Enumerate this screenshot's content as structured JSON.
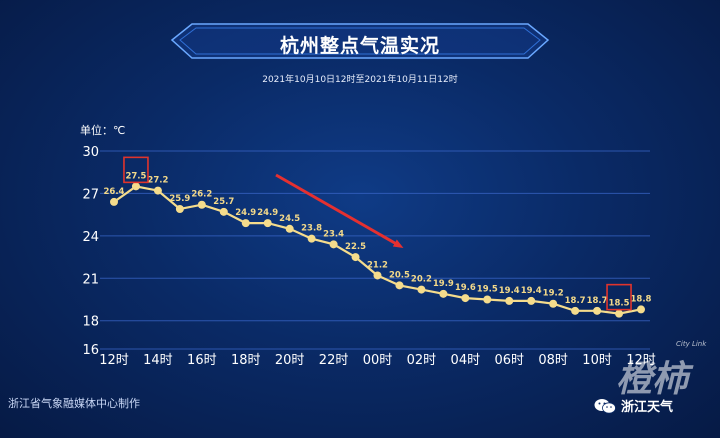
{
  "header": {
    "title": "杭州整点气温实况",
    "subtitle": "2021年10月10日12时至2021年10月11日12时"
  },
  "footer": {
    "credit": "浙江省气象融媒体中心制作",
    "brand": "浙江天气",
    "watermark": "橙柿",
    "watermark_small": "City Link",
    "brand_icon": "wechat-icon"
  },
  "colors": {
    "line": "#f5dc8c",
    "label": "#f3d98a",
    "highlight": "#e0342c",
    "arrow": "#e53030",
    "grid": "#3a66c8"
  },
  "chart_data": {
    "type": "line",
    "title": "杭州整点气温实况",
    "ylabel": "单位：℃",
    "ylim": [
      16,
      30
    ],
    "yticks": [
      16,
      18,
      21,
      24,
      27,
      30
    ],
    "xtick_labels": [
      "12时",
      "14时",
      "16时",
      "18时",
      "20时",
      "22时",
      "00时",
      "02时",
      "04时",
      "06时",
      "08时",
      "10时",
      "12时"
    ],
    "x": [
      "12时",
      "13时",
      "14时",
      "15时",
      "16时",
      "17时",
      "18时",
      "19时",
      "20时",
      "21时",
      "22时",
      "23时",
      "00时",
      "01时",
      "02时",
      "03时",
      "04时",
      "05时",
      "06时",
      "07时",
      "08时",
      "09时",
      "10时",
      "11时",
      "12时"
    ],
    "values": [
      26.4,
      27.5,
      27.2,
      25.9,
      26.2,
      25.7,
      24.9,
      24.9,
      24.5,
      23.8,
      23.4,
      22.5,
      21.2,
      20.5,
      20.2,
      19.9,
      19.6,
      19.5,
      19.4,
      19.4,
      19.2,
      18.7,
      18.7,
      18.5,
      18.8
    ],
    "highlighted": [
      1,
      23
    ],
    "grid": true
  }
}
